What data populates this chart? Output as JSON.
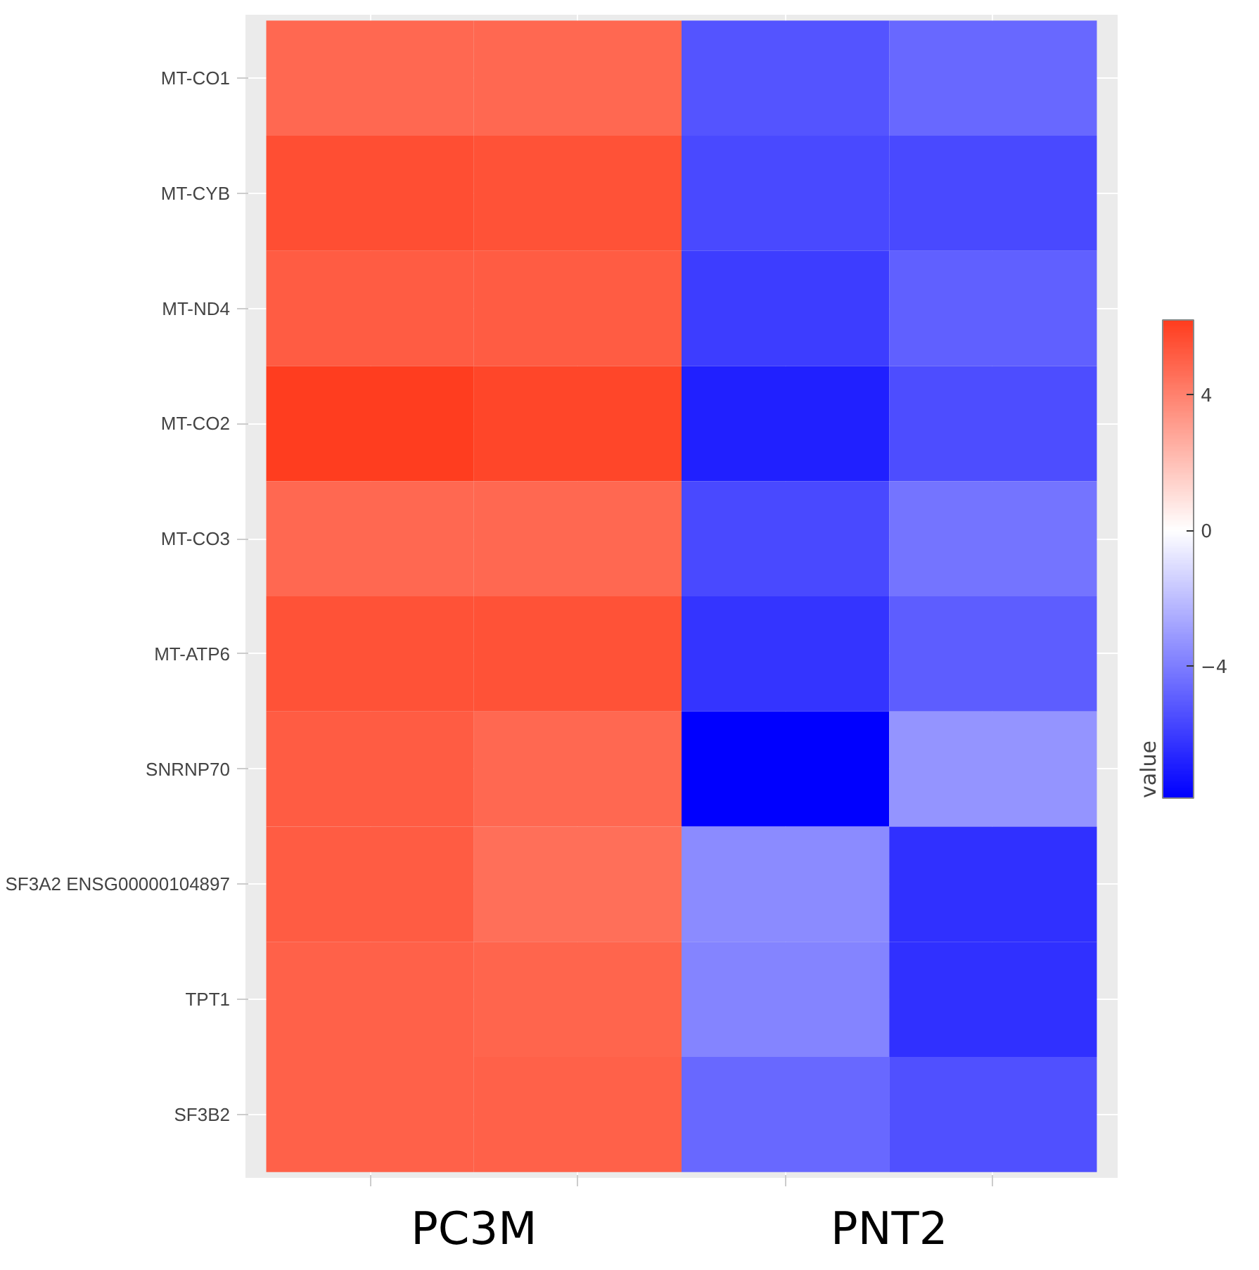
{
  "chart_data": {
    "type": "heatmap",
    "categories": [
      null,
      null,
      null,
      null
    ],
    "y_categories": [
      "MT-CO1",
      "MT-CYB",
      "MT-ND4",
      "MT-CO2",
      "MT-CO3",
      "MT-ATP6",
      "SNRNP70",
      "SF3A2 ENSG00000104897",
      "TPT1",
      "SF3B2"
    ],
    "cells": [
      [
        4.8,
        4.8,
        -5.3,
        -4.7
      ],
      [
        5.6,
        5.5,
        -5.6,
        -5.6
      ],
      [
        5.2,
        5.2,
        -6.0,
        -4.9
      ],
      [
        6.2,
        5.9,
        -6.9,
        -5.5
      ],
      [
        4.8,
        4.8,
        -5.6,
        -4.3
      ],
      [
        5.5,
        5.5,
        -6.3,
        -5.0
      ],
      [
        5.2,
        4.8,
        -7.9,
        -3.3
      ],
      [
        5.2,
        4.6,
        -3.6,
        -6.4
      ],
      [
        5.0,
        4.9,
        -3.8,
        -6.4
      ],
      [
        5.0,
        5.0,
        -4.7,
        -5.4
      ]
    ],
    "colors": [
      "#0000ff",
      "#ffffff",
      "#ff3d1f"
    ],
    "clabel": "value",
    "clim": [
      -7.9,
      6.2
    ],
    "cticks": [
      -4,
      0,
      4
    ],
    "annotations": [
      "PC3M",
      "PNT2"
    ],
    "grid": true
  }
}
